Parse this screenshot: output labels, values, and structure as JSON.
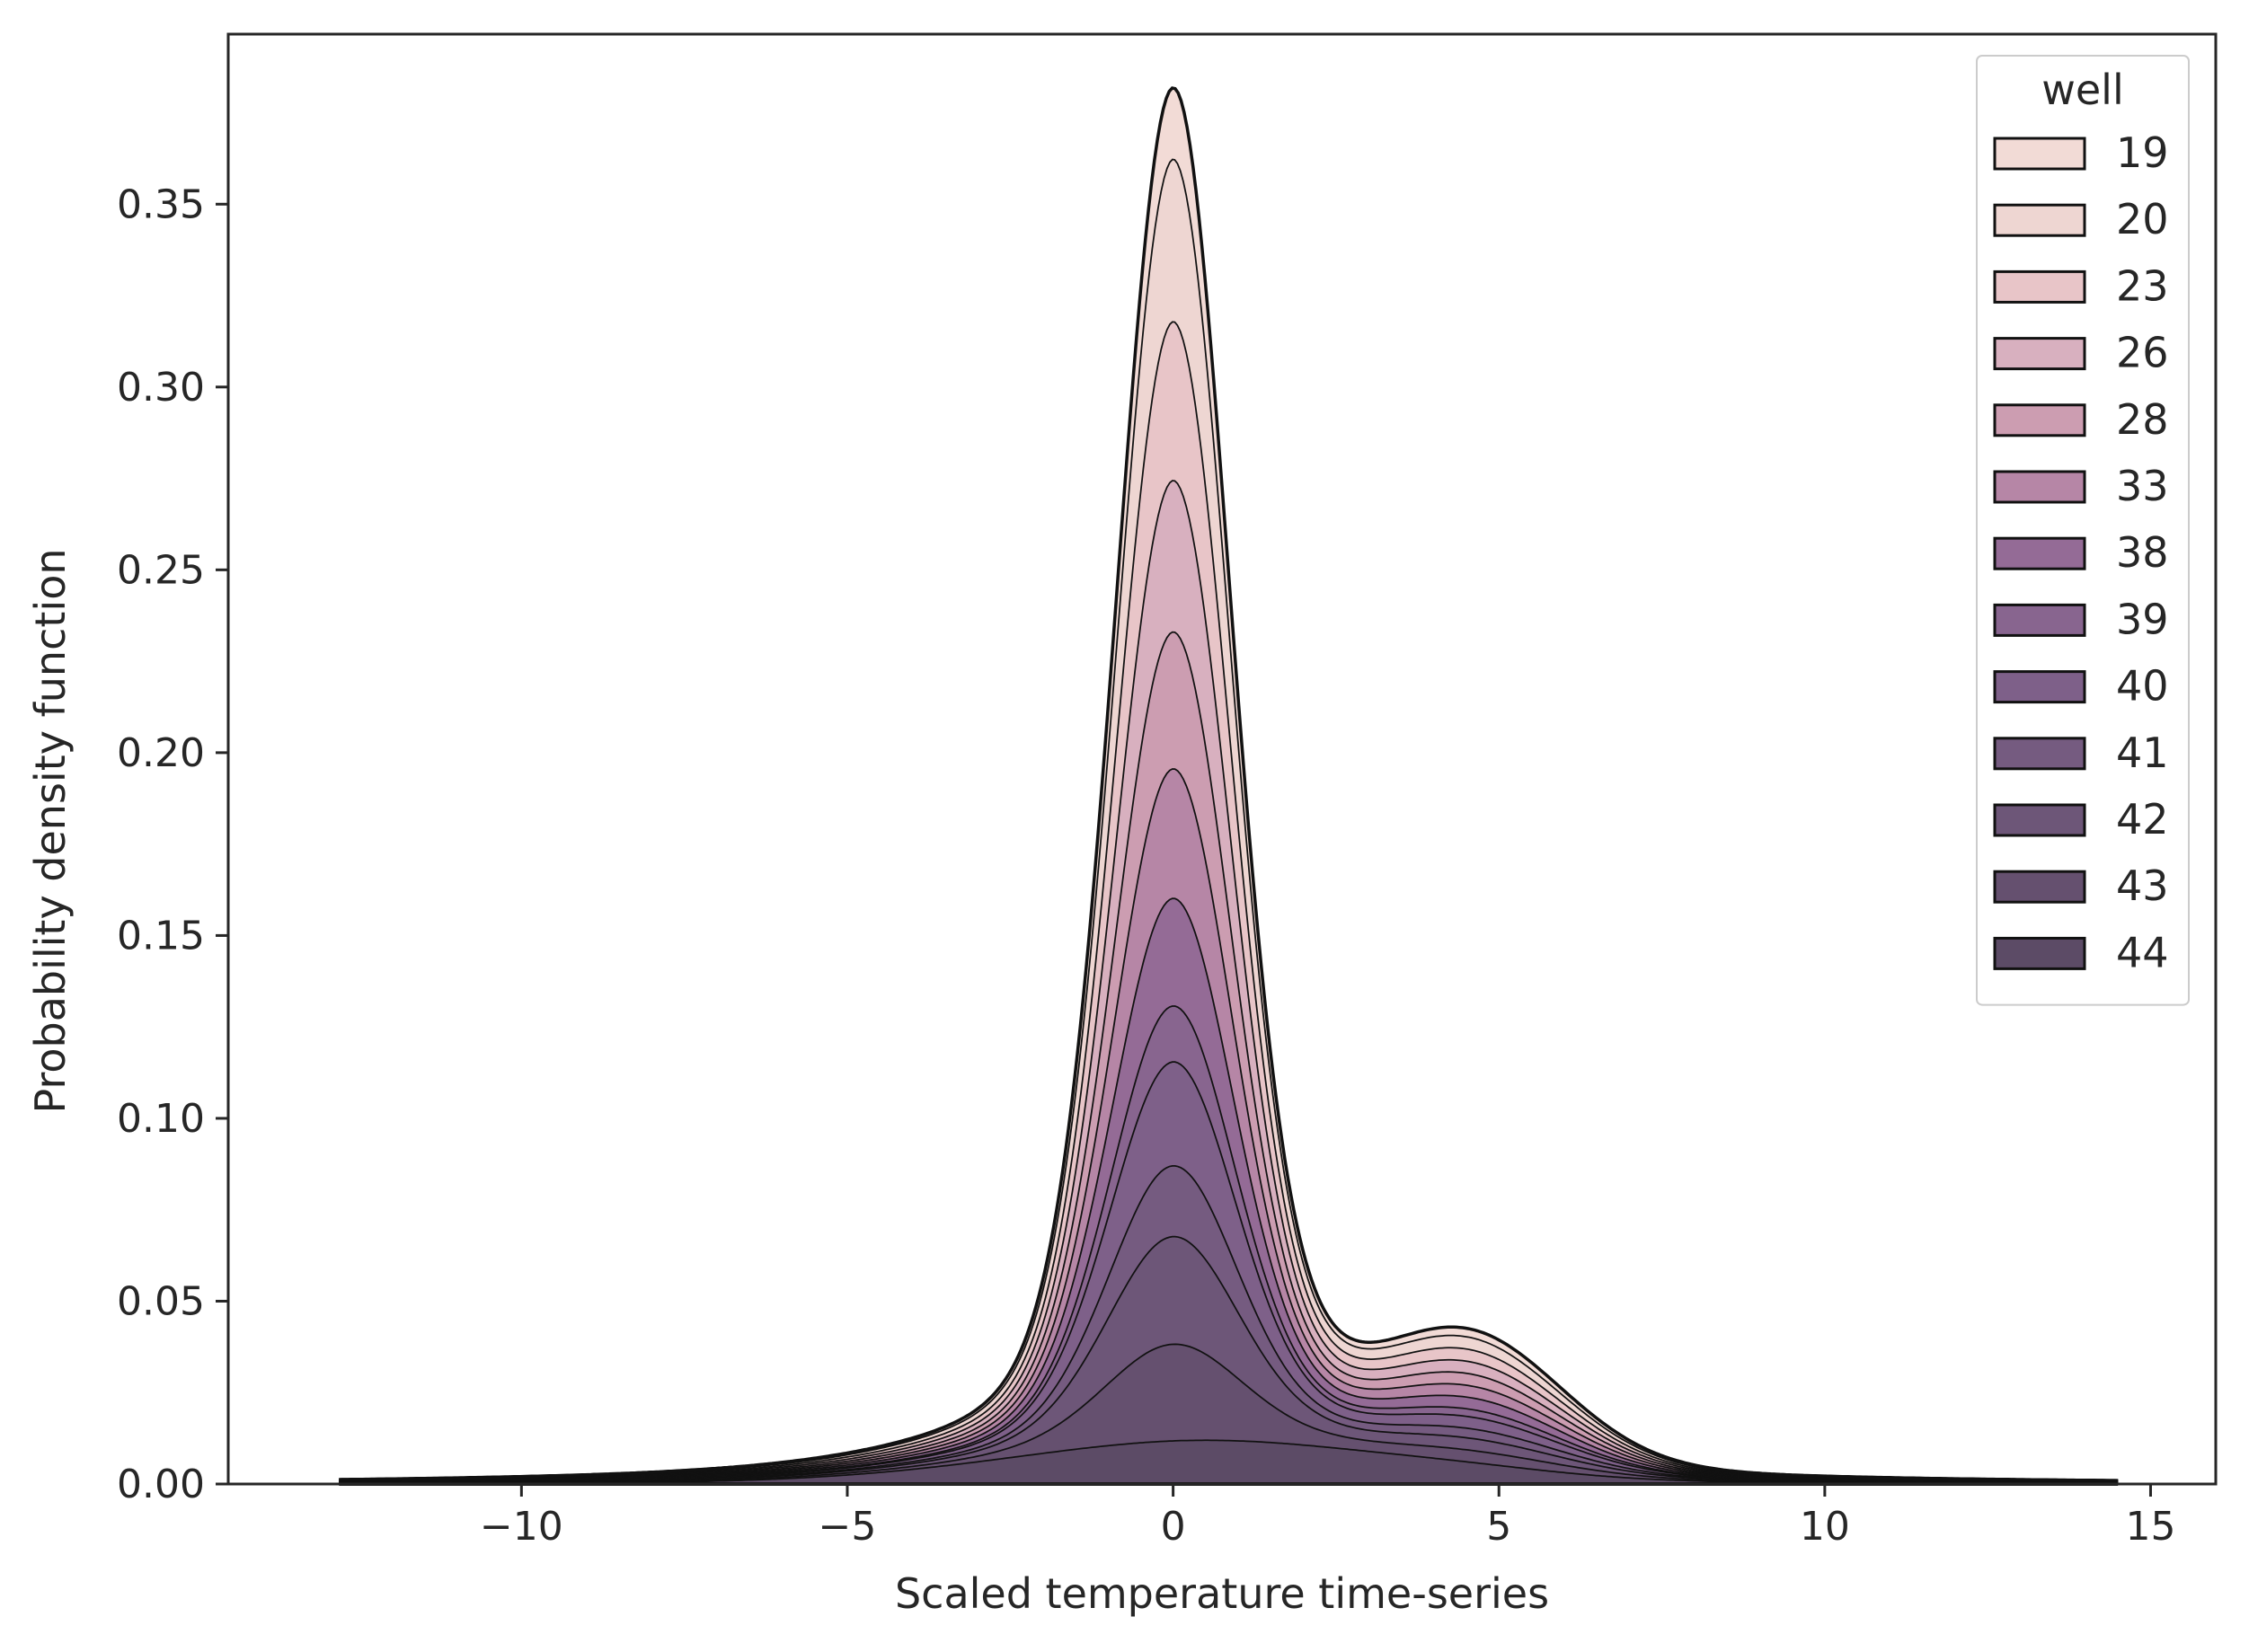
{
  "chart_data": {
    "type": "area",
    "stacked": true,
    "title": "",
    "xlabel": "Scaled temperature time-series",
    "ylabel": "Probability density function",
    "xlim": [
      -14.5,
      16.0
    ],
    "ylim": [
      0.0,
      0.3965
    ],
    "x_ticks": [
      -10,
      -5,
      0,
      5,
      10,
      15
    ],
    "x_tick_labels": [
      "−10",
      "−5",
      "0",
      "5",
      "10",
      "15"
    ],
    "y_ticks": [
      0.0,
      0.05,
      0.1,
      0.15,
      0.2,
      0.25,
      0.3,
      0.35
    ],
    "y_tick_labels": [
      "0.00",
      "0.05",
      "0.10",
      "0.15",
      "0.20",
      "0.25",
      "0.30",
      "0.35"
    ],
    "grid": false,
    "legend": {
      "title": "well",
      "placement": "top-right",
      "entries": [
        "19",
        "20",
        "23",
        "26",
        "28",
        "33",
        "38",
        "39",
        "40",
        "41",
        "42",
        "43",
        "44"
      ]
    },
    "series_note": "stacked densities, cumulative peak heights near x=0 from bottom (well 44) to top (well 19)",
    "series": [
      {
        "name": "44",
        "color": "#5c4b66",
        "peak": 0.012,
        "center": 0.5,
        "width": 3.0,
        "tail": 0.0005
      },
      {
        "name": "43",
        "color": "#65506f",
        "peak": 0.026,
        "center": 0.0,
        "width": 1.05,
        "tail": 0.0012
      },
      {
        "name": "42",
        "color": "#6d5678",
        "peak": 0.029,
        "center": 0.0,
        "width": 1.0,
        "tail": 0.0012
      },
      {
        "name": "41",
        "color": "#755b80",
        "peak": 0.019,
        "center": 0.0,
        "width": 0.95,
        "tail": 0.001
      },
      {
        "name": "40",
        "color": "#7e6089",
        "peak": 0.028,
        "center": 0.0,
        "width": 0.95,
        "tail": 0.0012
      },
      {
        "name": "39",
        "color": "#88658f",
        "peak": 0.015,
        "center": 0.0,
        "width": 0.9,
        "tail": 0.0008
      },
      {
        "name": "38",
        "color": "#946b96",
        "peak": 0.029,
        "center": 0.0,
        "width": 0.9,
        "tail": 0.0012
      },
      {
        "name": "33",
        "color": "#b686a6",
        "peak": 0.035,
        "center": 0.0,
        "width": 0.85,
        "tail": 0.0012
      },
      {
        "name": "28",
        "color": "#cc9db1",
        "peak": 0.037,
        "center": 0.0,
        "width": 0.85,
        "tail": 0.0012
      },
      {
        "name": "26",
        "color": "#d8b0bf",
        "peak": 0.041,
        "center": 0.0,
        "width": 0.85,
        "tail": 0.0012
      },
      {
        "name": "23",
        "color": "#e8c5c8",
        "peak": 0.043,
        "center": 0.0,
        "width": 0.85,
        "tail": 0.0012
      },
      {
        "name": "20",
        "color": "#eed6d2",
        "peak": 0.044,
        "center": 0.0,
        "width": 0.85,
        "tail": 0.0012
      },
      {
        "name": "19",
        "color": "#f2dbd6",
        "peak": 0.019,
        "center": 0.0,
        "width": 0.85,
        "tail": 0.0008
      }
    ],
    "x_range": [
      -12.8,
      14.5
    ]
  }
}
